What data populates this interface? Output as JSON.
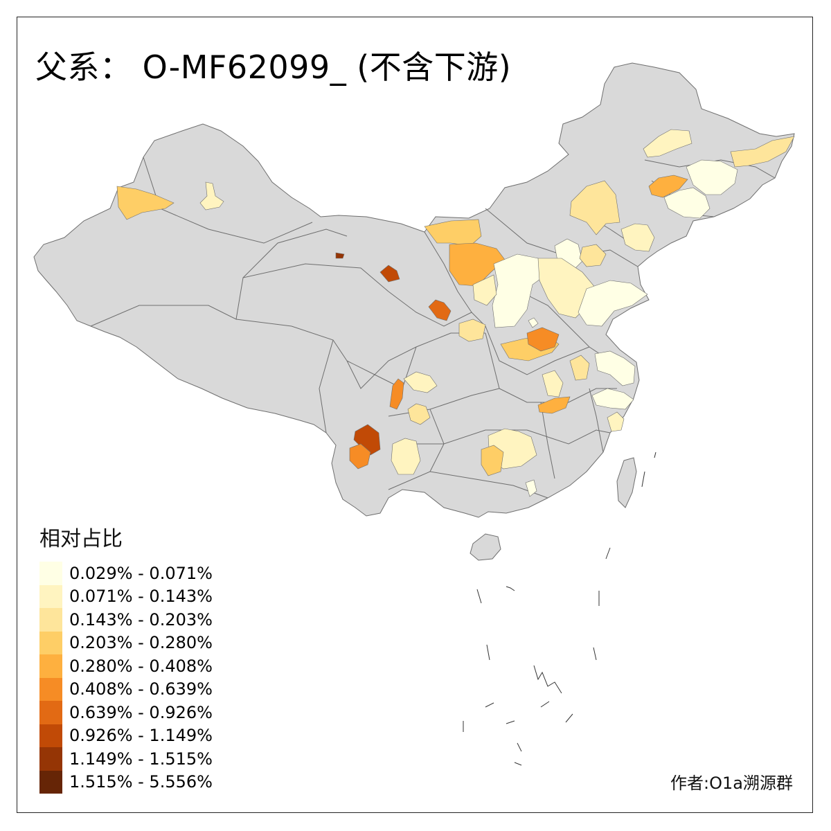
{
  "title": "父系： O-MF62099_ (不含下游)",
  "legend": {
    "title": "相对占比",
    "items": [
      {
        "label": "0.029% - 0.071%",
        "color": "#FFFFE5"
      },
      {
        "label": "0.071% - 0.143%",
        "color": "#FFF4C0"
      },
      {
        "label": "0.143% - 0.203%",
        "color": "#FEE59B"
      },
      {
        "label": "0.203% - 0.280%",
        "color": "#FECE66"
      },
      {
        "label": "0.280% - 0.408%",
        "color": "#FEB03F"
      },
      {
        "label": "0.408% - 0.639%",
        "color": "#F68C25"
      },
      {
        "label": "0.639% - 0.926%",
        "color": "#E26A14"
      },
      {
        "label": "0.926% - 1.149%",
        "color": "#C14A06"
      },
      {
        "label": "1.149% - 1.515%",
        "color": "#953505"
      },
      {
        "label": "1.515% - 5.556%",
        "color": "#662506"
      }
    ]
  },
  "author": "作者:O1a溯源群",
  "colors": {
    "land": "#D9D9D9",
    "border": "#6E6E6E",
    "no_data": "#D9D9D9",
    "frame": "#222222"
  },
  "regions": [
    {
      "name": "xinjiang-west",
      "class": 4
    },
    {
      "name": "xinjiang-north",
      "class": 2
    },
    {
      "name": "gansu-north",
      "class": 9
    },
    {
      "name": "qinghai-east",
      "class": 7
    },
    {
      "name": "ningxia",
      "class": 8
    },
    {
      "name": "inner-mongolia-west",
      "class": 4
    },
    {
      "name": "inner-mongolia-ordos",
      "class": 5
    },
    {
      "name": "inner-mongolia-east",
      "class": 3
    },
    {
      "name": "heilongjiang-west",
      "class": 2
    },
    {
      "name": "heilongjiang-east",
      "class": 3
    },
    {
      "name": "jilin-west",
      "class": 5
    },
    {
      "name": "jilin-east",
      "class": 1
    },
    {
      "name": "jilin-south",
      "class": 1
    },
    {
      "name": "liaoning-west",
      "class": 2
    },
    {
      "name": "hebei-north",
      "class": 1
    },
    {
      "name": "beijing-tianjin",
      "class": 3
    },
    {
      "name": "shanxi",
      "class": 1
    },
    {
      "name": "shaanxi-north",
      "class": 2
    },
    {
      "name": "hebei-south",
      "class": 2
    },
    {
      "name": "shandong",
      "class": 1
    },
    {
      "name": "henan-north",
      "class": 4
    },
    {
      "name": "henan-central",
      "class": 6
    },
    {
      "name": "shaanxi-south",
      "class": 3
    },
    {
      "name": "gansu-east",
      "class": 1
    },
    {
      "name": "anhui-north",
      "class": 3
    },
    {
      "name": "jiangsu",
      "class": 1
    },
    {
      "name": "hubei-north",
      "class": 2
    },
    {
      "name": "hubei-east",
      "class": 5
    },
    {
      "name": "zhejiang",
      "class": 1
    },
    {
      "name": "sichuan-west",
      "class": 6
    },
    {
      "name": "sichuan-central",
      "class": 2
    },
    {
      "name": "sichuan-south",
      "class": 3
    },
    {
      "name": "yunnan-west",
      "class": 8
    },
    {
      "name": "yunnan-southwest",
      "class": 6
    },
    {
      "name": "yunnan-central",
      "class": 2
    },
    {
      "name": "hunan",
      "class": 2
    },
    {
      "name": "hunan-west",
      "class": 4
    },
    {
      "name": "guangxi-east",
      "class": 1
    },
    {
      "name": "fujian",
      "class": 2
    }
  ]
}
